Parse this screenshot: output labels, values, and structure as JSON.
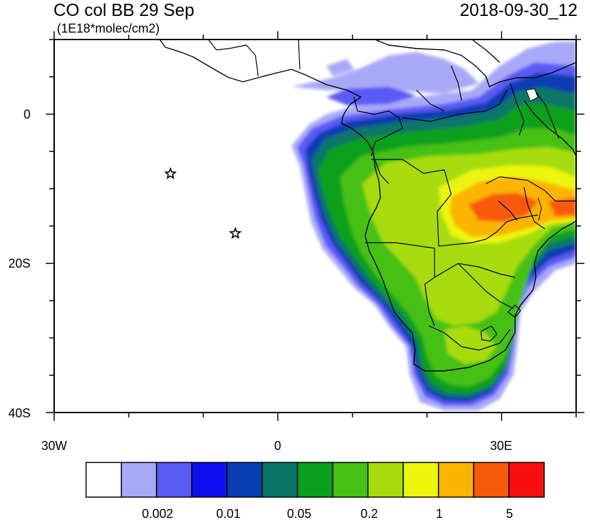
{
  "title": "CO col BB 29 Sep",
  "units": "(1E18*molec/cm2)",
  "valid_time": "2018-09-30_12",
  "axes": {
    "lon_range": [
      -30,
      40
    ],
    "lat_range": [
      -40,
      10
    ],
    "x_ticks": [
      "30W",
      "0",
      "30E"
    ],
    "y_ticks": [
      "0",
      "20S",
      "40S"
    ]
  },
  "markers": [
    {
      "name": "star",
      "lon": -14.4,
      "lat": -8.0
    },
    {
      "name": "star",
      "lon": -5.7,
      "lat": -16.0
    }
  ],
  "colorbar": {
    "colors": [
      "#ffffff",
      "#a8a8f8",
      "#5a5af5",
      "#0f0ff0",
      "#0a3cb4",
      "#097768",
      "#0aa01e",
      "#46c012",
      "#a6dc0c",
      "#ecf50a",
      "#fcb400",
      "#f85a08",
      "#f81010"
    ],
    "labels": [
      "0.002",
      "0.01",
      "0.05",
      "0.2",
      "1",
      "5"
    ]
  }
}
